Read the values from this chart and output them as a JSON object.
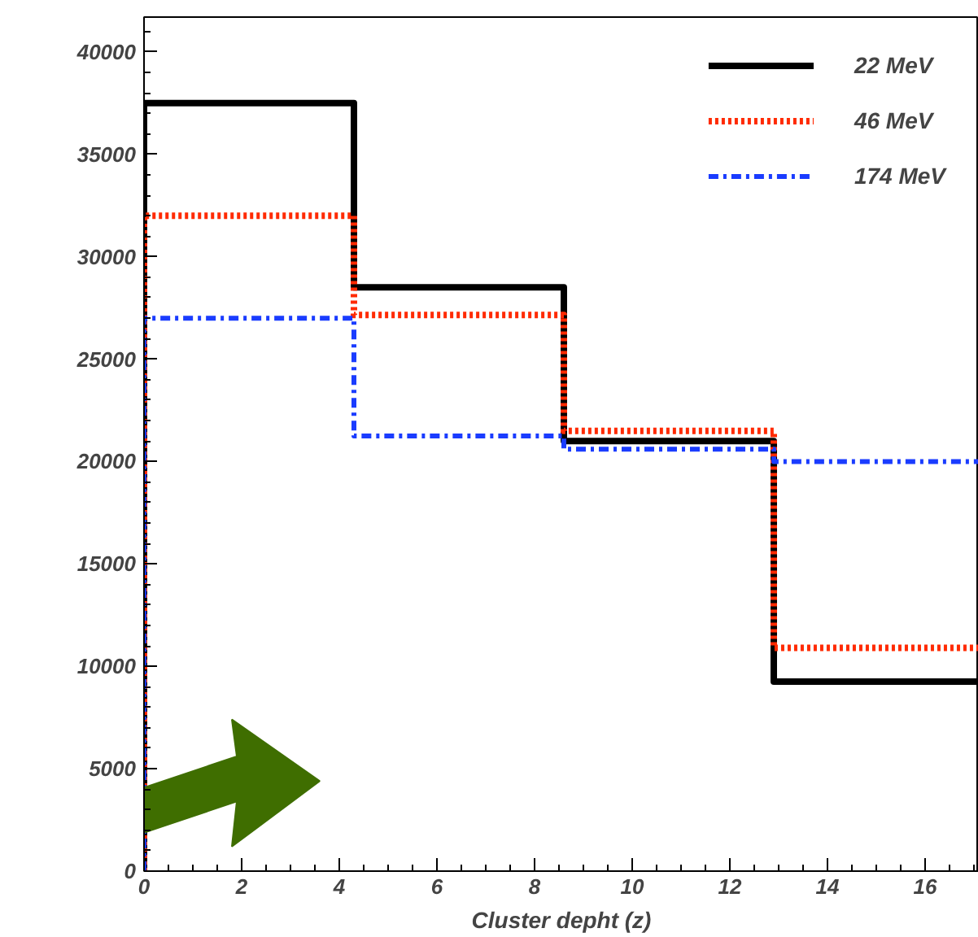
{
  "chart_data": {
    "type": "histogram",
    "xlabel": "Cluster depht (z)",
    "bins": [
      0,
      4.3,
      8.6,
      12.9,
      17.2
    ],
    "series": [
      {
        "name": "22 MeV",
        "color": "#000000",
        "line_style": "solid",
        "values": [
          37500,
          28500,
          21000,
          9250
        ]
      },
      {
        "name": "46 MeV",
        "color": "#ff2a00",
        "line_style": "dotted",
        "values": [
          32000,
          27150,
          21500,
          10900
        ]
      },
      {
        "name": "174 MeV",
        "color": "#1a3cff",
        "line_style": "dashdot",
        "values": [
          27000,
          21250,
          20600,
          20000
        ]
      }
    ],
    "xlim": [
      0,
      17.1
    ],
    "ylim": [
      0,
      41700
    ],
    "xticks": [
      0,
      2,
      4,
      6,
      8,
      10,
      12,
      14,
      16
    ],
    "yticks": [
      0,
      5000,
      10000,
      15000,
      20000,
      25000,
      30000,
      35000,
      40000
    ],
    "grid": false,
    "legend": "top right"
  }
}
